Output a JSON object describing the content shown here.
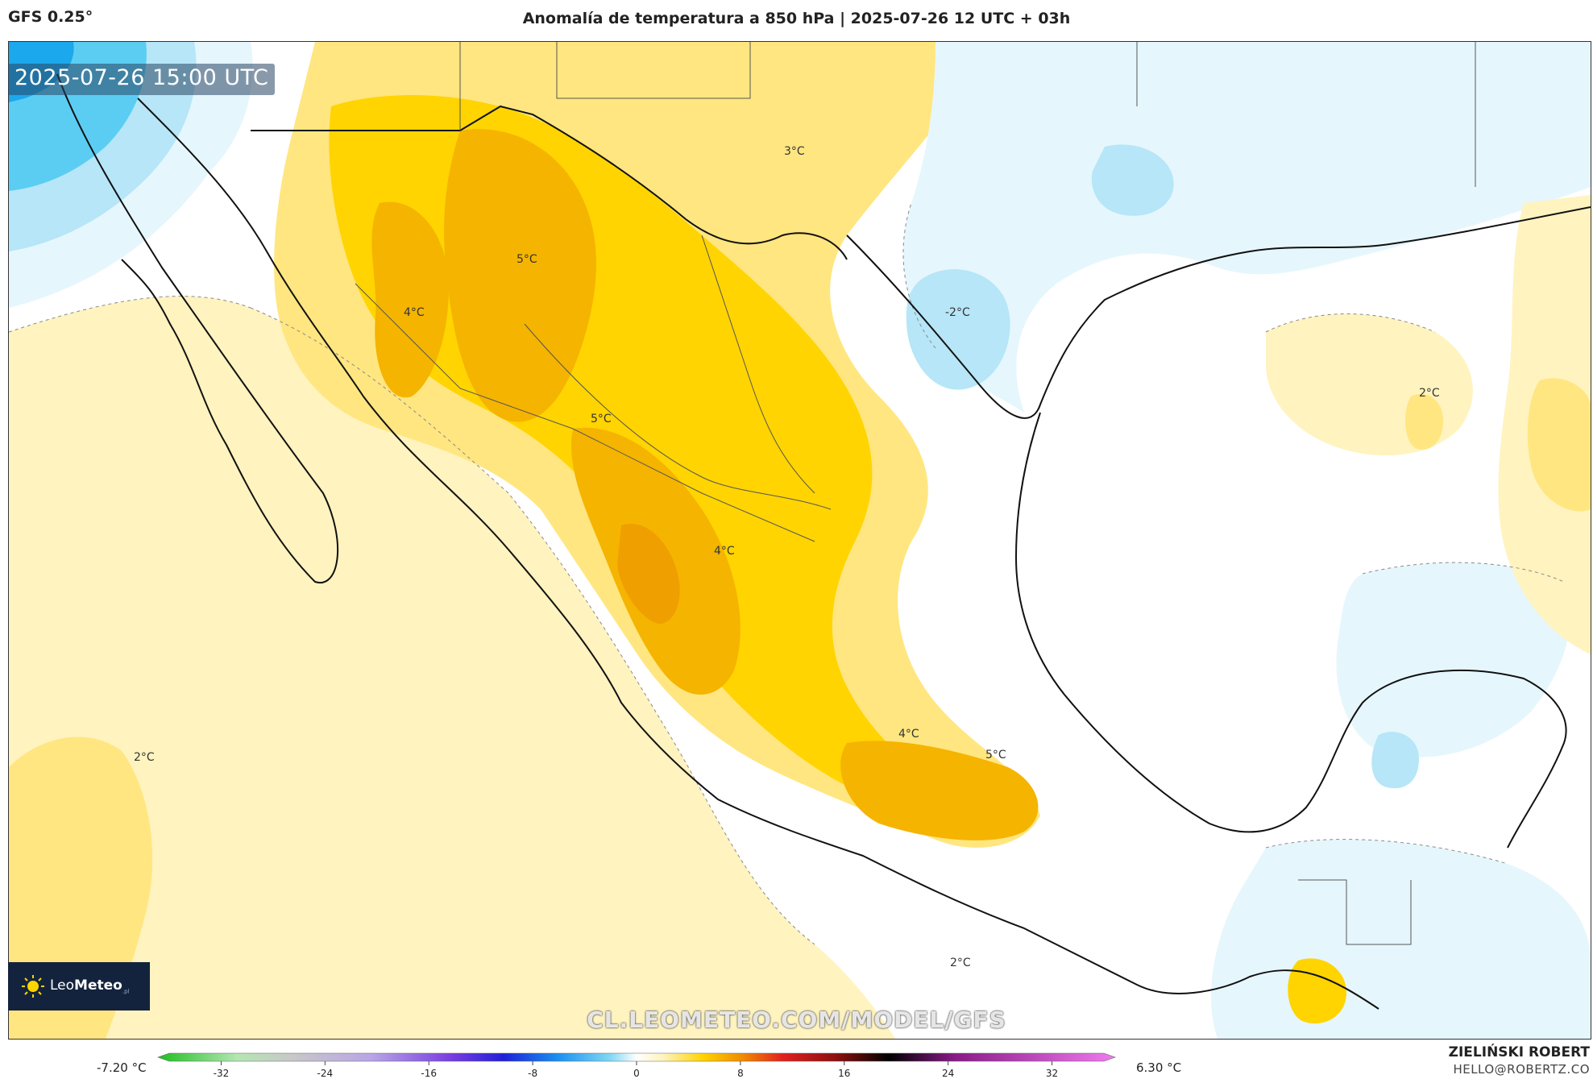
{
  "header": {
    "model": "GFS 0.25°",
    "title": "Anomalía de temperatura a 850 hPa | 2025-07-26 12 UTC + 03h"
  },
  "map": {
    "timestamp": "2025-07-26 15:00 UTC",
    "watermark": "CL.LEOMETEO.COM/MODEL/GFS",
    "contour_labels": [
      {
        "text": "3°C"
      },
      {
        "text": "5°C"
      },
      {
        "text": "4°C"
      },
      {
        "text": "-2°C"
      },
      {
        "text": "5°C"
      },
      {
        "text": "2°C"
      },
      {
        "text": "4°C"
      },
      {
        "text": "4°C"
      },
      {
        "text": "5°C"
      },
      {
        "text": "2°C"
      },
      {
        "text": "2°C"
      }
    ],
    "colors": {
      "warm_light": "#fff3bf",
      "warm_mid": "#ffe680",
      "warm_strong": "#ffd400",
      "warm_deep": "#f5b400",
      "warm_peak": "#ef9f00",
      "cool_light": "#e6f6fd",
      "cool_mid": "#b6e6f7",
      "cool_strong": "#5ccdf2",
      "cool_deep": "#1ba8ec"
    }
  },
  "logo": {
    "brand_a": "Leo",
    "brand_b": "Meteo",
    "suffix": ".pl"
  },
  "legend": {
    "min_label": "-7.20 °C",
    "max_label": "6.30 °C",
    "ticks": [
      "-32",
      "-24",
      "-16",
      "-8",
      "0",
      "8",
      "16",
      "24",
      "32"
    ],
    "tick_values": [
      -32,
      -24,
      -16,
      -8,
      0,
      8,
      16,
      24,
      32
    ],
    "range": [
      -36,
      36
    ],
    "stops": [
      {
        "value": -36,
        "color": "#1fbf1f"
      },
      {
        "value": -30,
        "color": "#b4e6b4"
      },
      {
        "value": -26,
        "color": "#c8c8c8"
      },
      {
        "value": -20,
        "color": "#b8a6e6"
      },
      {
        "value": -14,
        "color": "#7a3ee0"
      },
      {
        "value": -10,
        "color": "#2020d8"
      },
      {
        "value": -6,
        "color": "#1a8ef0"
      },
      {
        "value": -2,
        "color": "#7fd8f5"
      },
      {
        "value": 0,
        "color": "#ffffff"
      },
      {
        "value": 2,
        "color": "#fff3bf"
      },
      {
        "value": 5,
        "color": "#ffd400"
      },
      {
        "value": 8,
        "color": "#f08a00"
      },
      {
        "value": 11,
        "color": "#e02020"
      },
      {
        "value": 15,
        "color": "#8c0f0f"
      },
      {
        "value": 19,
        "color": "#000000"
      },
      {
        "value": 24,
        "color": "#8a1a8a"
      },
      {
        "value": 36,
        "color": "#f07aee"
      }
    ]
  },
  "footer": {
    "author": "ZIELIŃSKI ROBERT",
    "email": "HELLO@ROBERTZ.CO"
  }
}
